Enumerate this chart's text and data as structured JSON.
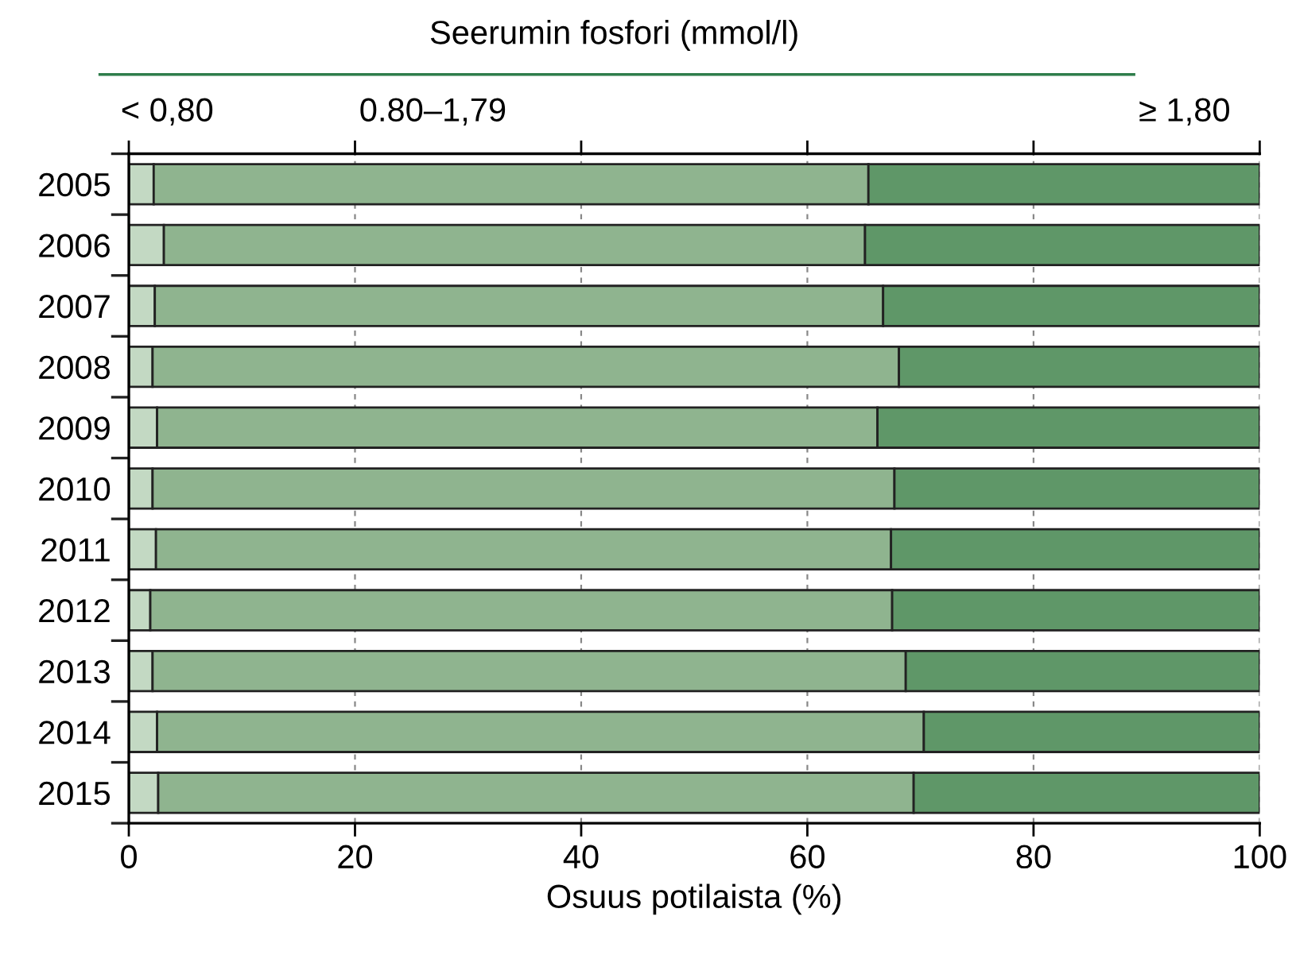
{
  "chart_data": {
    "type": "bar",
    "orientation": "horizontal",
    "stacked": true,
    "title": "Seerumin fosfori (mmol/l)",
    "xlabel": "Osuus potilaista (%)",
    "categories": [
      "2005",
      "2006",
      "2007",
      "2008",
      "2009",
      "2010",
      "2011",
      "2012",
      "2013",
      "2014",
      "2015"
    ],
    "series": [
      {
        "name": "< 0,80",
        "color": "#c3d9c3",
        "values": [
          2.2,
          3.1,
          2.3,
          2.1,
          2.5,
          2.1,
          2.4,
          1.9,
          2.1,
          2.5,
          2.6
        ]
      },
      {
        "name": "0.80–1,79",
        "color": "#8fb48f",
        "values": [
          63.2,
          62.0,
          64.4,
          66.0,
          63.7,
          65.6,
          65.0,
          65.6,
          66.6,
          67.8,
          66.8
        ]
      },
      {
        "name": "≥ 1,80",
        "color": "#5f9768",
        "values": [
          34.6,
          34.9,
          33.3,
          31.9,
          33.8,
          32.3,
          32.6,
          32.5,
          31.3,
          29.7,
          30.6
        ]
      }
    ],
    "xlim": [
      0,
      100
    ],
    "xticks": [
      0,
      20,
      40,
      60,
      80,
      100
    ],
    "grid": "x"
  }
}
